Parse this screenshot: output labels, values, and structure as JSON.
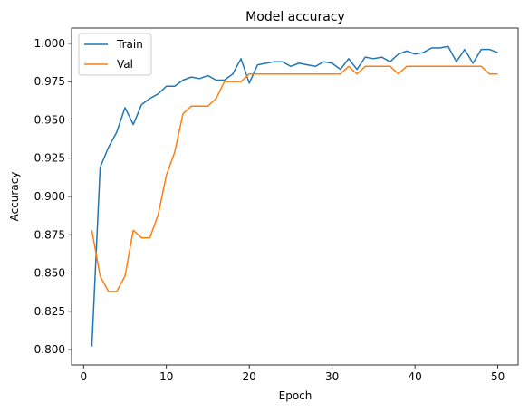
{
  "chart_data": {
    "type": "line",
    "title": "Model accuracy",
    "xlabel": "Epoch",
    "ylabel": "Accuracy",
    "xlim": [
      -1.45,
      52.45
    ],
    "ylim": [
      0.79,
      1.01
    ],
    "xticks": [
      0,
      10,
      20,
      30,
      40,
      50
    ],
    "xtick_labels": [
      "0",
      "10",
      "20",
      "30",
      "40",
      "50"
    ],
    "yticks": [
      0.8,
      0.825,
      0.85,
      0.875,
      0.9,
      0.925,
      0.95,
      0.975,
      1.0
    ],
    "ytick_labels": [
      "0.800",
      "0.825",
      "0.850",
      "0.875",
      "0.900",
      "0.925",
      "0.950",
      "0.975",
      "1.000"
    ],
    "grid": false,
    "legend_position": "top-left",
    "x": [
      1,
      2,
      3,
      4,
      5,
      6,
      7,
      8,
      9,
      10,
      11,
      12,
      13,
      14,
      15,
      16,
      17,
      18,
      19,
      20,
      21,
      22,
      23,
      24,
      25,
      26,
      27,
      28,
      29,
      30,
      31,
      32,
      33,
      34,
      35,
      36,
      37,
      38,
      39,
      40,
      41,
      42,
      43,
      44,
      45,
      46,
      47,
      48,
      49,
      50
    ],
    "series": [
      {
        "name": "Train",
        "color": "#1f77b4",
        "values": [
          0.802,
          0.919,
          0.932,
          0.942,
          0.958,
          0.947,
          0.96,
          0.964,
          0.967,
          0.972,
          0.972,
          0.976,
          0.978,
          0.977,
          0.979,
          0.976,
          0.976,
          0.98,
          0.99,
          0.974,
          0.986,
          0.987,
          0.988,
          0.988,
          0.985,
          0.987,
          0.986,
          0.985,
          0.988,
          0.987,
          0.983,
          0.99,
          0.983,
          0.991,
          0.99,
          0.991,
          0.988,
          0.993,
          0.995,
          0.993,
          0.994,
          0.997,
          0.997,
          0.998,
          0.988,
          0.996,
          0.987,
          0.996,
          0.996,
          0.994
        ]
      },
      {
        "name": "Val",
        "color": "#ff7f0e",
        "values": [
          0.878,
          0.848,
          0.838,
          0.838,
          0.848,
          0.878,
          0.873,
          0.873,
          0.888,
          0.914,
          0.929,
          0.954,
          0.959,
          0.959,
          0.959,
          0.964,
          0.975,
          0.975,
          0.975,
          0.98,
          0.98,
          0.98,
          0.98,
          0.98,
          0.98,
          0.98,
          0.98,
          0.98,
          0.98,
          0.98,
          0.98,
          0.985,
          0.98,
          0.985,
          0.985,
          0.985,
          0.985,
          0.98,
          0.985,
          0.985,
          0.985,
          0.985,
          0.985,
          0.985,
          0.985,
          0.985,
          0.985,
          0.985,
          0.98,
          0.98
        ]
      }
    ]
  }
}
